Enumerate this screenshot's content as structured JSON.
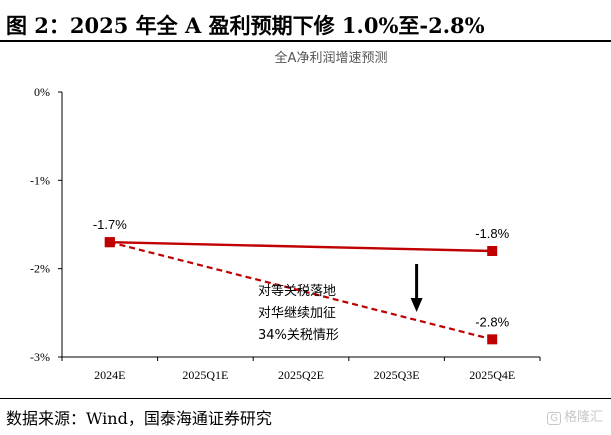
{
  "figure": {
    "title": "图 2：2025 年全 A 盈利预期下修 1.0%至-2.8%",
    "source": "数据来源：Wind，国泰海通证券研究",
    "watermark_badge": "G",
    "watermark": "格隆汇"
  },
  "chart_data": {
    "type": "line",
    "title": "全A净利润增速预测",
    "categories": [
      "2024E",
      "2025Q1E",
      "2025Q2E",
      "2025Q3E",
      "2025Q4E"
    ],
    "ylim": [
      -3,
      0
    ],
    "yticks": [
      0,
      -1,
      -2,
      -3
    ],
    "ytick_labels": [
      "0%",
      "-1%",
      "-2%",
      "-3%"
    ],
    "series": [
      {
        "name": "solid",
        "style": "solid",
        "color": "#c00000",
        "points": [
          {
            "x": "2024E",
            "y": -1.7,
            "label": "-1.7%"
          },
          {
            "x": "2025Q4E",
            "y": -1.8,
            "label": "-1.8%"
          }
        ]
      },
      {
        "name": "dashed",
        "style": "dashed",
        "color": "#c00000",
        "points": [
          {
            "x": "2024E",
            "y": -1.7,
            "label": ""
          },
          {
            "x": "2025Q4E",
            "y": -2.8,
            "label": "-2.8%"
          }
        ]
      }
    ],
    "annotation": {
      "lines": [
        "对等关税落地",
        "对华继续加征",
        "34%关税情形"
      ],
      "arrow": "down"
    }
  }
}
